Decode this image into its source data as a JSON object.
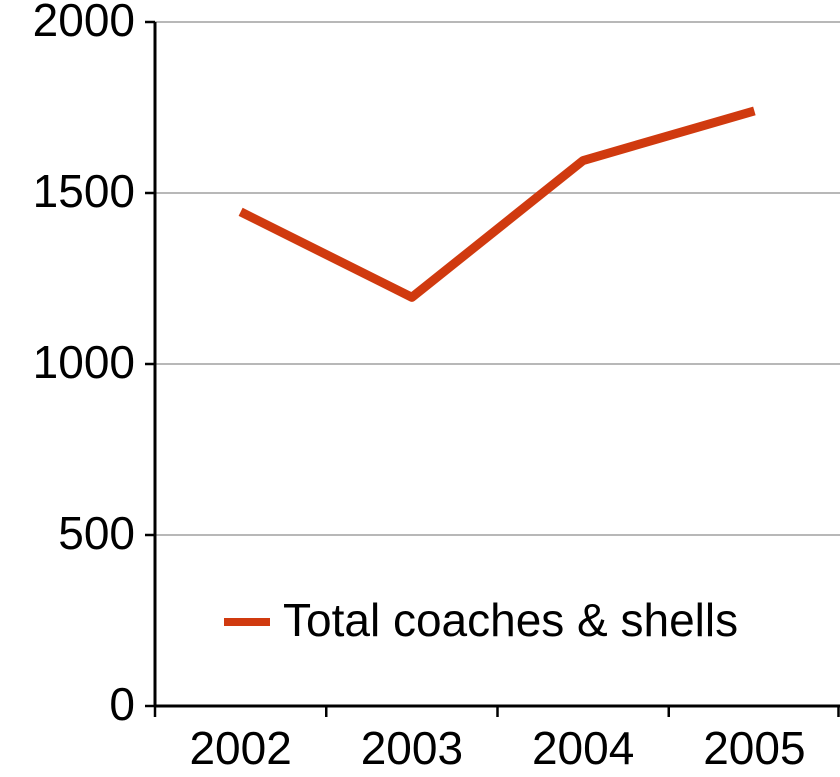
{
  "chart_data": {
    "type": "line",
    "categories": [
      "2002",
      "2003",
      "2004",
      "2005"
    ],
    "series": [
      {
        "name": "Total coaches & shells",
        "color": "#d03a0f",
        "values": [
          1445,
          1195,
          1595,
          1740
        ]
      }
    ],
    "ylim": [
      0,
      2000
    ],
    "yticks": [
      0,
      500,
      1000,
      1500,
      2000
    ],
    "grid": true,
    "legend": "bottom-right"
  }
}
